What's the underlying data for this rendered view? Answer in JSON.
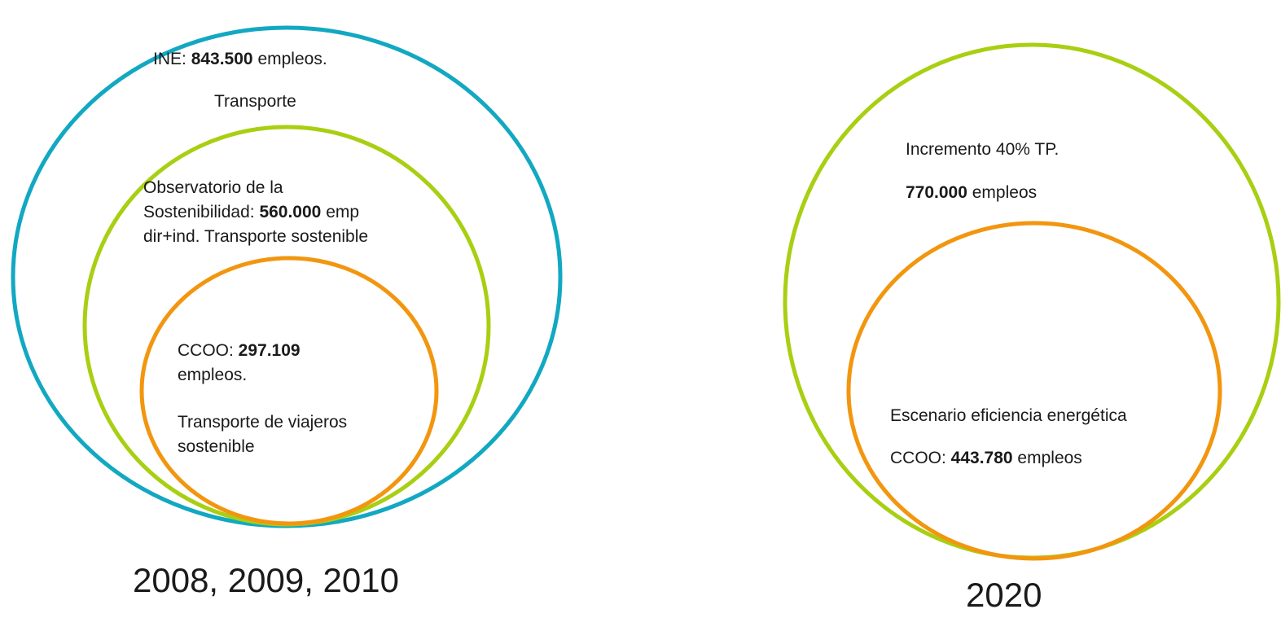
{
  "left_group": {
    "caption": "2008, 2009, 2010",
    "outer": {
      "prefix": "INE: ",
      "value": "843.500",
      "suffix": " empleos.",
      "subtitle": "Transporte",
      "color": "#12A8C2"
    },
    "middle": {
      "line1": "Observatorio de la",
      "line2_prefix": "Sostenibilidad: ",
      "line2_value": "560.000",
      "line2_suffix": " emp",
      "line3": "dir+ind. Transporte sostenible",
      "color": "#A8CF12"
    },
    "inner": {
      "prefix": "CCOO: ",
      "value": "297.109",
      "line2": "empleos.",
      "line3": "Transporte de viajeros",
      "line4": "sostenible",
      "color": "#F2960F"
    }
  },
  "right_group": {
    "caption": "2020",
    "outer": {
      "line1": "Incremento 40% TP.",
      "value": "770.000",
      "suffix": " empleos",
      "color": "#A8CF12"
    },
    "inner": {
      "line1": "Escenario eficiencia energética",
      "prefix": "CCOO: ",
      "value": "443.780",
      "suffix": " empleos",
      "color": "#F2960F"
    }
  }
}
